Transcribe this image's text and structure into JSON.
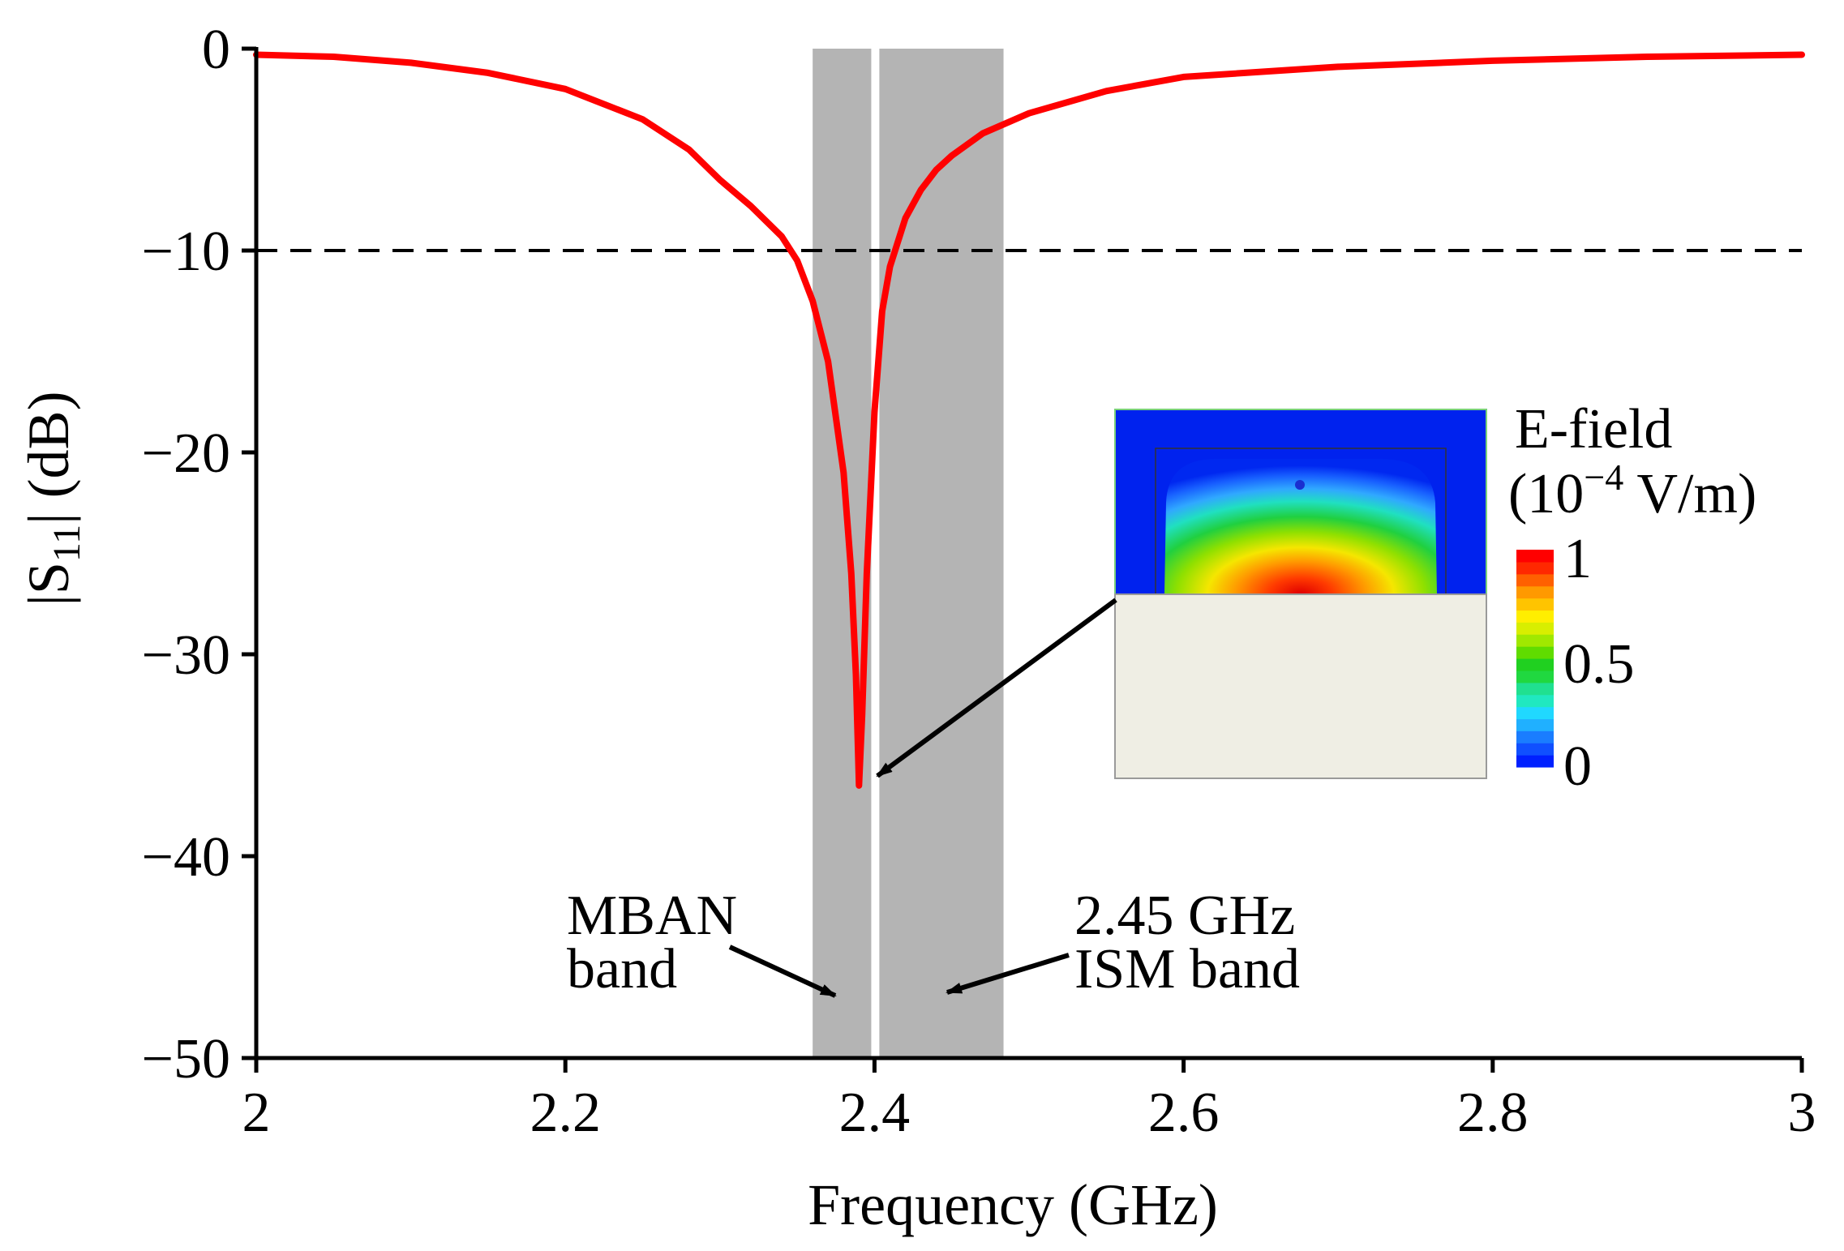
{
  "chart_data": {
    "type": "line",
    "title": "",
    "xlabel": "Frequency (GHz)",
    "ylabel": {
      "prefix": "|S",
      "subscript": "11",
      "suffix": "| (dB)"
    },
    "xlim": [
      2,
      3
    ],
    "ylim": [
      -50,
      0
    ],
    "xticks": [
      {
        "value": 2,
        "label": "2"
      },
      {
        "value": 2.2,
        "label": "2.2"
      },
      {
        "value": 2.4,
        "label": "2.4"
      },
      {
        "value": 2.6,
        "label": "2.6"
      },
      {
        "value": 2.8,
        "label": "2.8"
      },
      {
        "value": 3,
        "label": "3"
      }
    ],
    "yticks": [
      {
        "value": 0,
        "label": "0"
      },
      {
        "value": -10,
        "label": "−10"
      },
      {
        "value": -20,
        "label": "−20"
      },
      {
        "value": -30,
        "label": "−30"
      },
      {
        "value": -40,
        "label": "−40"
      },
      {
        "value": -50,
        "label": "−50"
      }
    ],
    "series": [
      {
        "name": "|S11|",
        "color": "#ff0000",
        "x": [
          2.0,
          2.05,
          2.1,
          2.15,
          2.2,
          2.25,
          2.28,
          2.3,
          2.32,
          2.34,
          2.35,
          2.36,
          2.37,
          2.38,
          2.385,
          2.388,
          2.39,
          2.392,
          2.395,
          2.4,
          2.405,
          2.41,
          2.42,
          2.43,
          2.44,
          2.45,
          2.47,
          2.5,
          2.55,
          2.6,
          2.7,
          2.8,
          2.9,
          3.0
        ],
        "y": [
          -0.3,
          -0.4,
          -0.7,
          -1.2,
          -2.0,
          -3.5,
          -5.0,
          -6.5,
          -7.8,
          -9.3,
          -10.5,
          -12.5,
          -15.5,
          -21.0,
          -26.0,
          -31.0,
          -36.5,
          -33.0,
          -26.0,
          -18.0,
          -13.0,
          -10.8,
          -8.4,
          -7.0,
          -6.0,
          -5.3,
          -4.2,
          -3.2,
          -2.1,
          -1.4,
          -0.9,
          -0.6,
          -0.4,
          -0.3
        ]
      }
    ],
    "reference_line": {
      "y": -10,
      "style": "dashed",
      "color": "#000000"
    },
    "bands": [
      {
        "name": "MBAN",
        "x0": 2.36,
        "x1": 2.4,
        "color": "#b4b4b4"
      },
      {
        "name": "2.45 GHz ISM",
        "x0": 2.4,
        "x1": 2.4835,
        "color": "#b4b4b4"
      }
    ],
    "annotations": {
      "mban": {
        "line1": "MBAN",
        "line2": "band"
      },
      "ism": {
        "line1": "2.45 GHz",
        "line2": "ISM band"
      }
    },
    "inset": {
      "title_line1": "E-field",
      "title_line2_prefix": "(10",
      "title_line2_sup": "−4",
      "title_line2_suffix": " V/m)",
      "colorbar_labels": [
        "1",
        "0.5",
        "0"
      ],
      "points_to": {
        "x": 2.39,
        "y": -36.5
      }
    }
  }
}
